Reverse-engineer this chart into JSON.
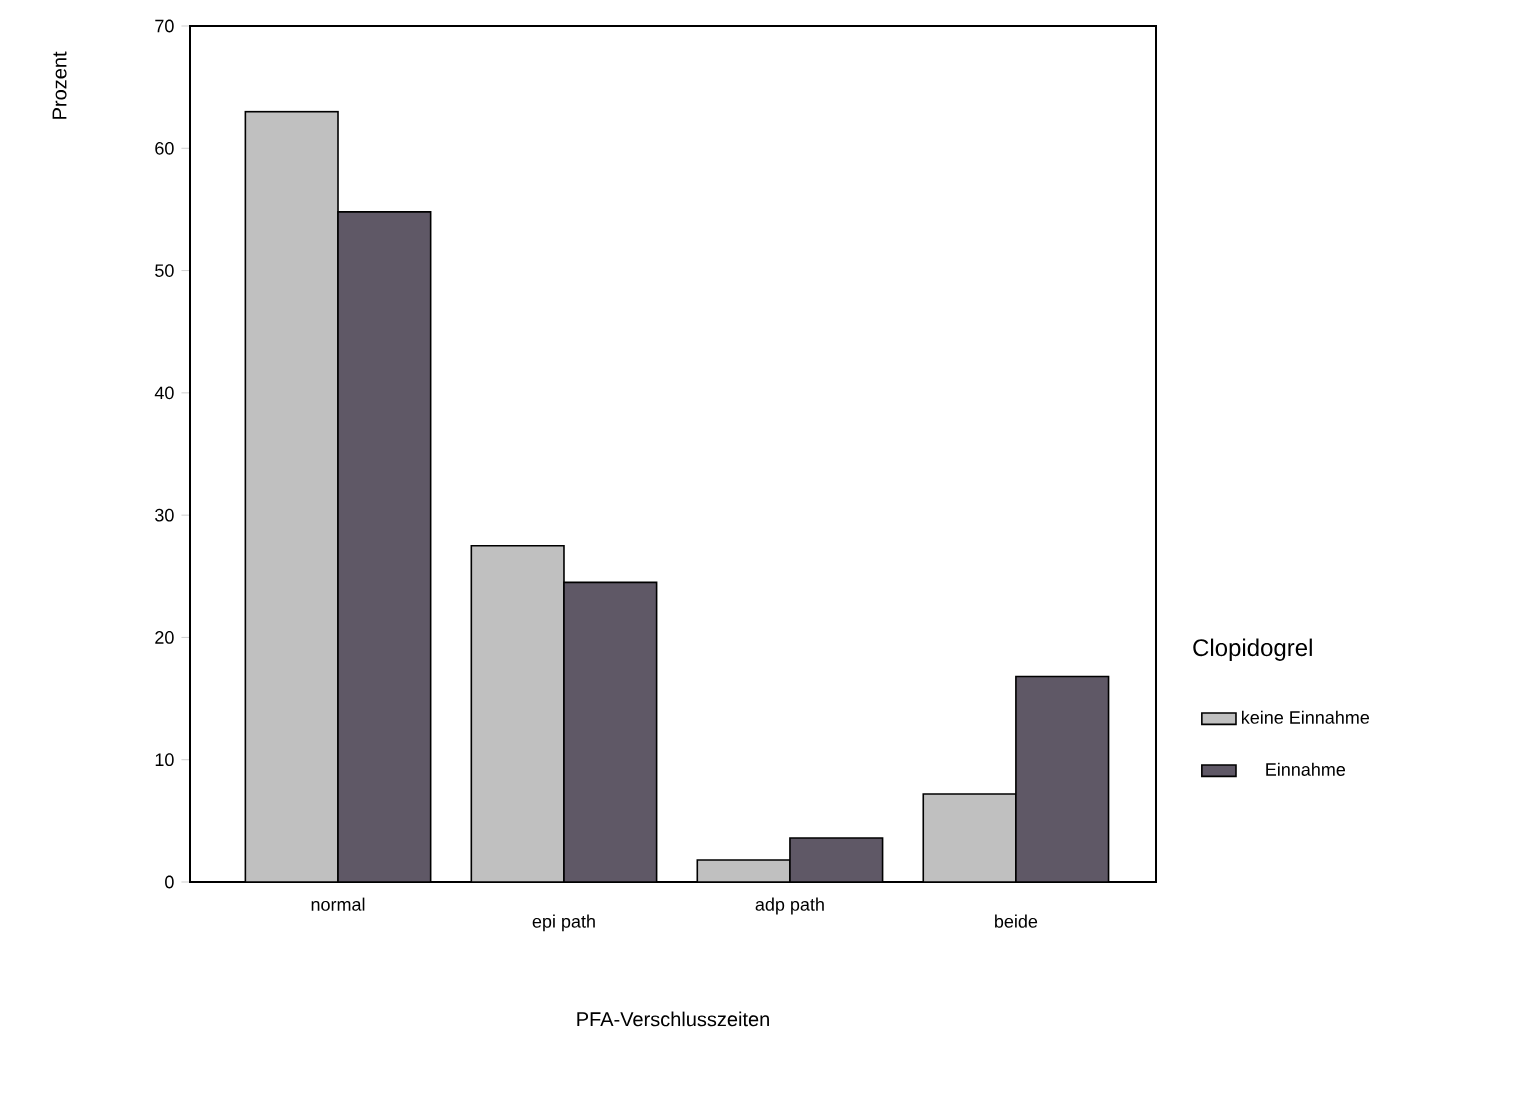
{
  "chart_data": {
    "type": "bar",
    "xlabel": "PFA-Verschlusszeiten",
    "ylabel": "Prozent",
    "legend_title": "Clopidogrel",
    "categories": [
      "normal",
      "epi path",
      "adp path",
      "beide"
    ],
    "series": [
      {
        "name": "keine Einnahme",
        "color": "#c0c0c0",
        "values": [
          63.0,
          27.5,
          1.8,
          7.2
        ]
      },
      {
        "name": "Einnahme",
        "color": "#5f5866",
        "values": [
          54.8,
          24.5,
          3.6,
          16.8
        ]
      }
    ],
    "ylim": [
      0,
      70
    ],
    "yticks": [
      0,
      10,
      20,
      30,
      40,
      50,
      60,
      70
    ],
    "grid": false,
    "legend": "right"
  }
}
